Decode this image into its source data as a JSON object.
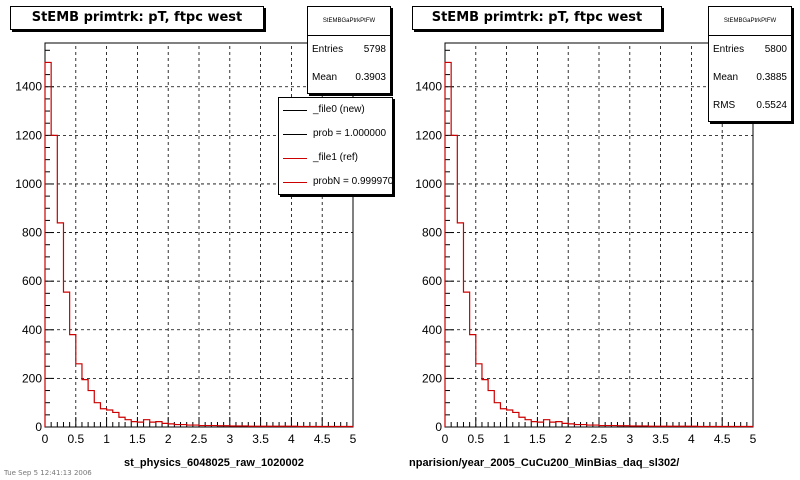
{
  "chart_data": [
    {
      "type": "histogram",
      "title": "StEMB primtrk: pT, ftpc west",
      "xlim": [
        0,
        5
      ],
      "ylim": [
        0,
        1580
      ],
      "xticks": [
        "0",
        "0.5",
        "1",
        "1.5",
        "2",
        "2.5",
        "3",
        "3.5",
        "4",
        "4.5",
        "5"
      ],
      "yticks": [
        "0",
        "200",
        "400",
        "600",
        "800",
        "1000",
        "1200",
        "1400"
      ],
      "grid": true,
      "bin_width": 0.1,
      "series": [
        {
          "name": "_file1 (ref)",
          "color": "#cc0000",
          "values": [
            1500,
            1200,
            840,
            555,
            380,
            260,
            195,
            150,
            100,
            75,
            70,
            60,
            40,
            30,
            22,
            20,
            30,
            20,
            22,
            15,
            13,
            10,
            10,
            8,
            8,
            6,
            6,
            6,
            5,
            5,
            4,
            4,
            4,
            3,
            3,
            3,
            3,
            3,
            3,
            3,
            3,
            2,
            2,
            2,
            2,
            2,
            2,
            2,
            2,
            2
          ]
        }
      ],
      "stats": {
        "name": "StEMBGaPtrkPtFW",
        "entries": "5798",
        "mean": "0.3903"
      },
      "legend": {
        "entries": [
          "_file0 (new)",
          "prob = 1.000000",
          "_file1 (ref)",
          "probN = 0.999970"
        ]
      },
      "footer": "st_physics_6048025_raw_1020002"
    },
    {
      "type": "histogram",
      "title": "StEMB primtrk: pT, ftpc west",
      "xlim": [
        0,
        5
      ],
      "ylim": [
        0,
        1580
      ],
      "xticks": [
        "0",
        "0.5",
        "1",
        "1.5",
        "2",
        "2.5",
        "3",
        "3.5",
        "4",
        "4.5",
        "5"
      ],
      "yticks": [
        "0",
        "200",
        "400",
        "600",
        "800",
        "1000",
        "1200",
        "1400"
      ],
      "grid": true,
      "bin_width": 0.1,
      "series": [
        {
          "name": "_file1 (ref)",
          "color": "#cc0000",
          "values": [
            1500,
            1200,
            840,
            555,
            380,
            260,
            195,
            150,
            100,
            75,
            70,
            60,
            40,
            30,
            22,
            20,
            30,
            20,
            22,
            15,
            13,
            10,
            10,
            8,
            8,
            6,
            6,
            6,
            5,
            5,
            4,
            4,
            4,
            3,
            3,
            3,
            3,
            3,
            3,
            3,
            3,
            2,
            2,
            2,
            2,
            2,
            2,
            2,
            2,
            2
          ]
        }
      ],
      "stats": {
        "name": "StEMBGaPtrkPtFW",
        "entries": "5800",
        "mean": "0.3885",
        "rms": "0.5524"
      },
      "footer": "nparision/year_2005_CuCu200_MinBias_daq_sl302/"
    }
  ],
  "labels": {
    "entries": "Entries",
    "mean": "Mean",
    "rms": "RMS"
  },
  "corner_text": "Tue Sep  5 12:41:13 2006"
}
